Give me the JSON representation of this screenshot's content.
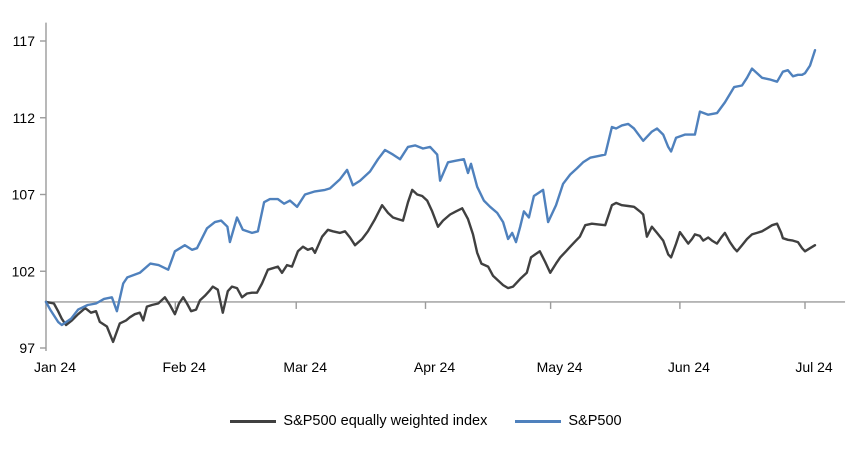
{
  "chart_data": {
    "type": "line",
    "title": "",
    "xlabel": "",
    "ylabel": "",
    "x_unit": "days since 2024-01-01",
    "xlim": [
      0,
      191.6
    ],
    "ylim": [
      97,
      118.2
    ],
    "grid": false,
    "legend_position": "bottom",
    "x_axis_cross_value": 100,
    "y_ticks": [
      97,
      102,
      107,
      112,
      117
    ],
    "x_ticks": {
      "positions": [
        0,
        31,
        60,
        91,
        121,
        152,
        182
      ],
      "labels": [
        "Jan 24",
        "Feb 24",
        "Mar 24",
        "Apr 24",
        "May 24",
        "Jun 24",
        "Jul 24"
      ]
    },
    "axis_color": "#9b9b9b",
    "series": [
      {
        "name": "S&P500 equally weighted index",
        "color": "#404040",
        "points": [
          [
            0,
            100
          ],
          [
            1.9,
            99.9
          ],
          [
            2.9,
            99.4
          ],
          [
            3.8,
            98.9
          ],
          [
            4.8,
            98.5
          ],
          [
            6.2,
            98.8
          ],
          [
            7.7,
            99.2
          ],
          [
            9.4,
            99.6
          ],
          [
            10.8,
            99.3
          ],
          [
            12,
            99.4
          ],
          [
            12.9,
            98.7
          ],
          [
            14.6,
            98.4
          ],
          [
            16.1,
            97.4
          ],
          [
            17.7,
            98.6
          ],
          [
            19.2,
            98.8
          ],
          [
            20.1,
            99
          ],
          [
            21.3,
            99.2
          ],
          [
            22.5,
            99.3
          ],
          [
            23.3,
            98.8
          ],
          [
            24.2,
            99.7
          ],
          [
            25.4,
            99.8
          ],
          [
            26.9,
            99.9
          ],
          [
            28.5,
            100.3
          ],
          [
            29.7,
            99.8
          ],
          [
            30.9,
            99.2
          ],
          [
            31.9,
            99.9
          ],
          [
            32.9,
            100.3
          ],
          [
            33.8,
            99.9
          ],
          [
            34.8,
            99.4
          ],
          [
            36,
            99.5
          ],
          [
            36.9,
            100.1
          ],
          [
            38.1,
            100.4
          ],
          [
            39.1,
            100.7
          ],
          [
            40,
            101
          ],
          [
            41.2,
            100.8
          ],
          [
            42.4,
            99.3
          ],
          [
            43.6,
            100.7
          ],
          [
            44.6,
            101
          ],
          [
            45.8,
            100.9
          ],
          [
            47,
            100.3
          ],
          [
            48.2,
            100.55
          ],
          [
            49.4,
            100.6
          ],
          [
            50.6,
            100.6
          ],
          [
            51.8,
            101.2
          ],
          [
            53.2,
            102.1
          ],
          [
            54.4,
            102.2
          ],
          [
            55.6,
            102.3
          ],
          [
            56.6,
            101.9
          ],
          [
            57.8,
            102.4
          ],
          [
            59,
            102.3
          ],
          [
            60.4,
            103.3
          ],
          [
            61.6,
            103.6
          ],
          [
            62.8,
            103.4
          ],
          [
            63.8,
            103.5
          ],
          [
            64.5,
            103.2
          ],
          [
            66.2,
            104.25
          ],
          [
            67.6,
            104.7
          ],
          [
            68.8,
            104.6
          ],
          [
            70.5,
            104.5
          ],
          [
            71.7,
            104.6
          ],
          [
            72.9,
            104.2
          ],
          [
            74.1,
            103.7
          ],
          [
            75.8,
            104.1
          ],
          [
            77.2,
            104.6
          ],
          [
            78.9,
            105.4
          ],
          [
            80.6,
            106.3
          ],
          [
            82,
            105.8
          ],
          [
            83.2,
            105.5
          ],
          [
            84.4,
            105.4
          ],
          [
            85.6,
            105.3
          ],
          [
            86.8,
            106.5
          ],
          [
            87.8,
            107.3
          ],
          [
            89,
            107
          ],
          [
            90.2,
            106.9
          ],
          [
            91.4,
            106.6
          ],
          [
            92.6,
            105.9
          ],
          [
            94,
            104.9
          ],
          [
            95.2,
            105.3
          ],
          [
            96.9,
            105.7
          ],
          [
            98.3,
            105.9
          ],
          [
            99.8,
            106.1
          ],
          [
            101.2,
            105.4
          ],
          [
            102.4,
            104.4
          ],
          [
            103.4,
            103.2
          ],
          [
            104.4,
            102.5
          ],
          [
            106,
            102.3
          ],
          [
            107.2,
            101.7
          ],
          [
            108.4,
            101.4
          ],
          [
            109.6,
            101.1
          ],
          [
            110.8,
            100.9
          ],
          [
            112,
            101
          ],
          [
            113.7,
            101.5
          ],
          [
            115.3,
            101.9
          ],
          [
            116.3,
            102.9
          ],
          [
            117.3,
            103.1
          ],
          [
            118.4,
            103.3
          ],
          [
            119.7,
            102.6
          ],
          [
            120.9,
            101.9
          ],
          [
            122.3,
            102.5
          ],
          [
            123.3,
            102.9
          ],
          [
            124.7,
            103.3
          ],
          [
            125.7,
            103.6
          ],
          [
            127.1,
            104
          ],
          [
            128,
            104.25
          ],
          [
            129.3,
            105
          ],
          [
            130.9,
            105.1
          ],
          [
            132.4,
            105.05
          ],
          [
            134.1,
            105
          ],
          [
            135.7,
            106.3
          ],
          [
            136.7,
            106.45
          ],
          [
            138.1,
            106.3
          ],
          [
            139.6,
            106.25
          ],
          [
            141,
            106.2
          ],
          [
            142.4,
            105.9
          ],
          [
            143.2,
            105.7
          ],
          [
            144.1,
            104.25
          ],
          [
            145.3,
            104.9
          ],
          [
            146.5,
            104.5
          ],
          [
            148,
            104
          ],
          [
            149.2,
            103.1
          ],
          [
            149.9,
            102.9
          ],
          [
            151.1,
            103.8
          ],
          [
            152,
            104.55
          ],
          [
            153.2,
            104.1
          ],
          [
            154,
            103.8
          ],
          [
            154.9,
            104.1
          ],
          [
            155.6,
            104.4
          ],
          [
            156.8,
            104.3
          ],
          [
            157.6,
            104
          ],
          [
            158.8,
            104.2
          ],
          [
            159.7,
            104
          ],
          [
            160.9,
            103.8
          ],
          [
            161.9,
            104.2
          ],
          [
            162.8,
            104.5
          ],
          [
            164,
            103.9
          ],
          [
            165,
            103.5
          ],
          [
            165.7,
            103.3
          ],
          [
            166.9,
            103.7
          ],
          [
            168.1,
            104.1
          ],
          [
            169.3,
            104.4
          ],
          [
            170.5,
            104.5
          ],
          [
            171.7,
            104.6
          ],
          [
            172.9,
            104.8
          ],
          [
            174.1,
            105
          ],
          [
            175.3,
            105.1
          ],
          [
            176.3,
            104.5
          ],
          [
            176.7,
            104.15
          ],
          [
            177.9,
            104.05
          ],
          [
            179.1,
            104
          ],
          [
            180.3,
            103.9
          ],
          [
            181.3,
            103.5
          ],
          [
            182,
            103.3
          ],
          [
            183.2,
            103.5
          ],
          [
            184.4,
            103.7
          ]
        ]
      },
      {
        "name": "S&P500",
        "color": "#4f81bd",
        "points": [
          [
            0,
            100
          ],
          [
            1,
            99.5
          ],
          [
            2.9,
            98.7
          ],
          [
            3.8,
            98.5
          ],
          [
            6,
            98.9
          ],
          [
            7.7,
            99.5
          ],
          [
            10,
            99.8
          ],
          [
            12,
            99.9
          ],
          [
            13.9,
            100.2
          ],
          [
            15.8,
            100.3
          ],
          [
            17,
            99.4
          ],
          [
            18,
            100.6
          ],
          [
            18.5,
            101.2
          ],
          [
            19.5,
            101.6
          ],
          [
            22.5,
            101.9
          ],
          [
            25,
            102.5
          ],
          [
            27,
            102.4
          ],
          [
            29.3,
            102.1
          ],
          [
            30.9,
            103.3
          ],
          [
            33.3,
            103.7
          ],
          [
            35,
            103.4
          ],
          [
            36.2,
            103.5
          ],
          [
            38.6,
            104.8
          ],
          [
            40.5,
            105.2
          ],
          [
            42,
            105.3
          ],
          [
            43.5,
            104.9
          ],
          [
            44.1,
            103.9
          ],
          [
            45.8,
            105.5
          ],
          [
            47.2,
            104.7
          ],
          [
            49.4,
            104.5
          ],
          [
            50.8,
            104.6
          ],
          [
            52.3,
            106.5
          ],
          [
            53.7,
            106.7
          ],
          [
            55.6,
            106.7
          ],
          [
            57.1,
            106.4
          ],
          [
            58.5,
            106.6
          ],
          [
            60.2,
            106.2
          ],
          [
            62.1,
            107
          ],
          [
            64.5,
            107.2
          ],
          [
            66.9,
            107.3
          ],
          [
            68.1,
            107.4
          ],
          [
            70.5,
            108
          ],
          [
            72.2,
            108.6
          ],
          [
            73.6,
            107.6
          ],
          [
            75.3,
            107.9
          ],
          [
            77.7,
            108.5
          ],
          [
            79.6,
            109.3
          ],
          [
            81.3,
            109.9
          ],
          [
            83.2,
            109.6
          ],
          [
            84.9,
            109.3
          ],
          [
            86.8,
            110.1
          ],
          [
            88.5,
            110.2
          ],
          [
            90.4,
            110
          ],
          [
            92.1,
            110.1
          ],
          [
            93.8,
            109.6
          ],
          [
            94.5,
            107.9
          ],
          [
            96.4,
            109.1
          ],
          [
            98.3,
            109.2
          ],
          [
            100.2,
            109.3
          ],
          [
            101.2,
            108.4
          ],
          [
            101.9,
            109
          ],
          [
            103.4,
            107.5
          ],
          [
            105,
            106.6
          ],
          [
            106.5,
            106.2
          ],
          [
            108.2,
            105.8
          ],
          [
            109.6,
            105.2
          ],
          [
            110.8,
            104.1
          ],
          [
            111.8,
            104.5
          ],
          [
            112.7,
            103.9
          ],
          [
            113.7,
            104.9
          ],
          [
            114.6,
            105.9
          ],
          [
            115.8,
            105.5
          ],
          [
            117,
            106.9
          ],
          [
            119.2,
            107.3
          ],
          [
            120.4,
            105.2
          ],
          [
            122.3,
            106.3
          ],
          [
            124,
            107.7
          ],
          [
            125.7,
            108.3
          ],
          [
            127.3,
            108.7
          ],
          [
            128.8,
            109.1
          ],
          [
            130.5,
            109.4
          ],
          [
            132.4,
            109.5
          ],
          [
            134.1,
            109.6
          ],
          [
            135.7,
            111.4
          ],
          [
            136.7,
            111.3
          ],
          [
            138.1,
            111.5
          ],
          [
            139.6,
            111.6
          ],
          [
            141,
            111.3
          ],
          [
            143.2,
            110.5
          ],
          [
            145.3,
            111.1
          ],
          [
            146.5,
            111.3
          ],
          [
            148,
            110.9
          ],
          [
            149.2,
            110.1
          ],
          [
            149.9,
            109.8
          ],
          [
            151.1,
            110.7
          ],
          [
            153.2,
            110.9
          ],
          [
            155.6,
            110.9
          ],
          [
            156.8,
            112.4
          ],
          [
            158.8,
            112.2
          ],
          [
            160.9,
            112.3
          ],
          [
            162.8,
            113
          ],
          [
            165,
            114
          ],
          [
            166.9,
            114.1
          ],
          [
            168.1,
            114.6
          ],
          [
            169.3,
            115.2
          ],
          [
            171.7,
            114.6
          ],
          [
            173.5,
            114.5
          ],
          [
            175.3,
            114.35
          ],
          [
            176.7,
            115
          ],
          [
            177.9,
            115.1
          ],
          [
            179.1,
            114.7
          ],
          [
            180.3,
            114.8
          ],
          [
            181.3,
            114.8
          ],
          [
            182,
            114.9
          ],
          [
            183.2,
            115.4
          ],
          [
            184.4,
            116.4
          ]
        ]
      }
    ]
  },
  "legend": {
    "item1": "S&P500 equally weighted index",
    "item2": "S&P500"
  }
}
